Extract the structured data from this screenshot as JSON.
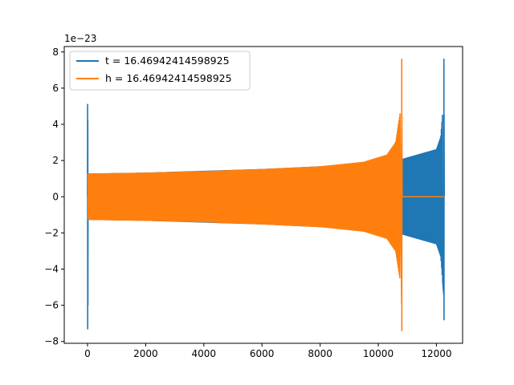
{
  "chart_data": {
    "type": "line",
    "title": "",
    "xlabel": "",
    "ylabel": "",
    "y_offset_label": "1e−23",
    "xlim": [
      -800,
      12900
    ],
    "ylim": [
      -8.1,
      8.3
    ],
    "xticks": [
      0,
      2000,
      4000,
      6000,
      8000,
      10000,
      12000
    ],
    "xtick_labels": [
      "0",
      "2000",
      "4000",
      "6000",
      "8000",
      "10000",
      "12000"
    ],
    "yticks": [
      -8,
      -6,
      -4,
      -2,
      0,
      2,
      4,
      6,
      8
    ],
    "ytick_labels": [
      "−8",
      "−6",
      "−4",
      "−2",
      "0",
      "2",
      "4",
      "6",
      "8"
    ],
    "grid": false,
    "legend_position": "top-left",
    "series": [
      {
        "name": "t = 16.46942414598925",
        "color": "#1f77b4",
        "envelope": {
          "initial_spike": {
            "x": 0,
            "max": 5.1,
            "min": -7.3
          },
          "start_x": 20,
          "start_amp": 1.25,
          "mid": [
            [
              2000,
              1.3
            ],
            [
              4000,
              1.4
            ],
            [
              6000,
              1.5
            ],
            [
              8000,
              1.65
            ],
            [
              10000,
              1.9
            ],
            [
              10800,
              2.05
            ],
            [
              12000,
              2.6
            ],
            [
              12150,
              3.3
            ],
            [
              12220,
              4.8
            ]
          ],
          "final_spike": {
            "x": 12260,
            "max": 7.6,
            "min": -6.8
          },
          "end_x": 12270
        }
      },
      {
        "name": "h = 16.46942414598925",
        "color": "#ff7f0e",
        "envelope": {
          "start_x": 20,
          "start_amp": 1.25,
          "mid": [
            [
              2000,
              1.3
            ],
            [
              4000,
              1.38
            ],
            [
              6000,
              1.5
            ],
            [
              8000,
              1.65
            ],
            [
              9500,
              1.9
            ],
            [
              10300,
              2.3
            ],
            [
              10600,
              3.0
            ],
            [
              10750,
              4.6
            ]
          ],
          "final_spike": {
            "x": 10810,
            "max": 7.6,
            "min": -7.4
          },
          "end_x": 10820,
          "flat_to_x": 12270,
          "flat_value": 0
        }
      }
    ]
  }
}
